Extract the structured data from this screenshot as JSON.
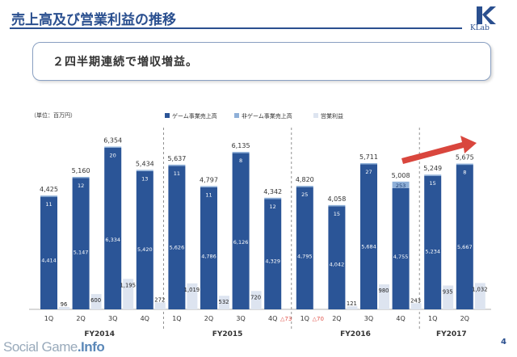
{
  "header": {
    "title": "売上高及び営業利益の推移",
    "logo_text": "KLab"
  },
  "headline": "２四半期連続で増収増益。",
  "page_number": "4",
  "watermark": {
    "part1": "Social Game",
    "part2": ".Info"
  },
  "colors": {
    "game": "#2b5597",
    "nongame": "#8fb0d8",
    "profit": "#dde4f0",
    "accent": "#2a4f8f",
    "arrow": "#d9463d",
    "negative": "#e0524a"
  },
  "chart_data": {
    "type": "bar",
    "unit_label": "（単位：百万円）",
    "legend": [
      "ゲーム事業売上高",
      "非ゲーム事業売上高",
      "営業利益"
    ],
    "legend_placement": "top-right",
    "categories": [
      "1Q",
      "2Q",
      "3Q",
      "4Q",
      "1Q",
      "2Q",
      "3Q",
      "4Q",
      "1Q",
      "2Q",
      "3Q",
      "4Q",
      "1Q",
      "2Q"
    ],
    "years": [
      {
        "label": "FY2014",
        "quarters": 4
      },
      {
        "label": "FY2015",
        "quarters": 4
      },
      {
        "label": "FY2016",
        "quarters": 4
      },
      {
        "label": "FY2017",
        "quarters": 2
      }
    ],
    "series": [
      {
        "name": "ゲーム事業売上高",
        "values": [
          4414,
          5147,
          6334,
          5420,
          5626,
          4786,
          6126,
          4329,
          4795,
          4042,
          5684,
          4755,
          5234,
          5667
        ],
        "labels": [
          "4,414",
          "5,147",
          "6,334",
          "5,420",
          "5,626",
          "4,786",
          "6,126",
          "4,329",
          "4,795",
          "4,042",
          "5,684",
          "4,755",
          "5,234",
          "5,667"
        ]
      },
      {
        "name": "非ゲーム事業売上高",
        "values": [
          11,
          12,
          20,
          13,
          11,
          11,
          8,
          12,
          25,
          15,
          27,
          253,
          15,
          8
        ],
        "labels": [
          "11",
          "12",
          "20",
          "13",
          "11",
          "11",
          "8",
          "12",
          "25",
          "15",
          "27",
          "253",
          "15",
          "8"
        ]
      },
      {
        "name": "営業利益",
        "values": [
          96,
          600,
          1195,
          272,
          1019,
          532,
          720,
          -73,
          -70,
          121,
          980,
          243,
          935,
          1032
        ],
        "labels": [
          "96",
          "600",
          "1,195",
          "272",
          "1,019",
          "532",
          "720",
          "△73",
          "△70",
          "121",
          "980",
          "243",
          "935",
          "1,032"
        ]
      }
    ],
    "totals": [
      "4,425",
      "5,160",
      "6,354",
      "5,434",
      "5,637",
      "4,797",
      "6,135",
      "4,342",
      "4,820",
      "4,058",
      "5,711",
      "5,008",
      "5,249",
      "5,675"
    ],
    "ylim": [
      0,
      7000
    ],
    "grid": false
  }
}
